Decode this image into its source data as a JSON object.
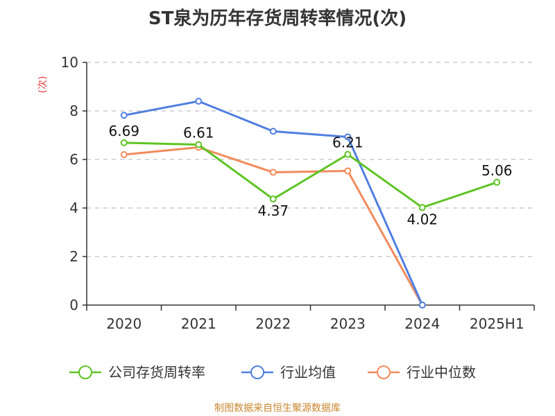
{
  "title": "ST泉为历年存货周转率情况(次)",
  "source": "制图数据来自恒生聚源数据库",
  "colors": {
    "company": "#5ec424",
    "industry_avg": "#4f7fe0",
    "industry_median": "#f28b5b",
    "ylabel": "#e8393d",
    "source": "#c8862e"
  },
  "chart_data": {
    "type": "line",
    "title": "ST泉为历年存货周转率情况(次)",
    "ylabel": "(次)",
    "xlabel": "",
    "categories": [
      "2020",
      "2021",
      "2022",
      "2023",
      "2024",
      "2025H1"
    ],
    "ylim": [
      0,
      10
    ],
    "yticks": [
      0,
      2,
      4,
      6,
      8,
      10
    ],
    "grid": true,
    "legend_position": "bottom",
    "series": [
      {
        "name": "公司存货周转率",
        "color_key": "company",
        "values": [
          6.69,
          6.61,
          4.37,
          6.21,
          4.02,
          5.06
        ],
        "labels": [
          "6.69",
          "6.61",
          "4.37",
          "6.21",
          "4.02",
          "5.06"
        ]
      },
      {
        "name": "行业均值",
        "color_key": "industry_avg",
        "values": [
          7.82,
          8.4,
          7.16,
          6.93,
          0,
          null
        ]
      },
      {
        "name": "行业中位数",
        "color_key": "industry_median",
        "values": [
          6.2,
          6.5,
          5.47,
          5.53,
          0,
          null
        ]
      }
    ]
  }
}
